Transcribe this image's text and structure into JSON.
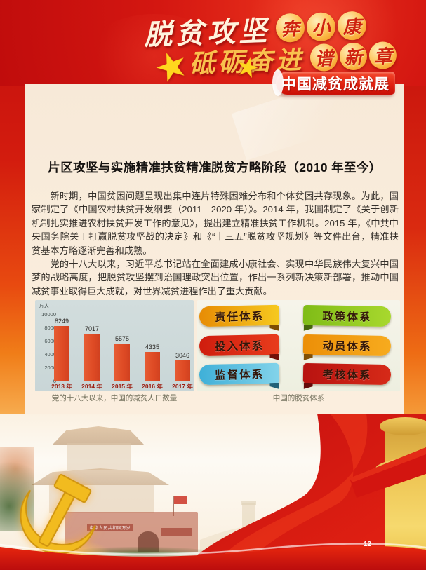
{
  "header": {
    "slogan_line1": "脱贫攻坚",
    "slogan_line1_medallions": [
      "奔",
      "小",
      "康"
    ],
    "slogan_line2": "砥砺奋进",
    "slogan_line2_medallions": [
      "谱",
      "新",
      "章"
    ],
    "banner_label": "中国减贫成就展"
  },
  "article": {
    "title": "片区攻坚与实施精准扶贫精准脱贫方略阶段（2010 年至今）",
    "paragraphs": [
      "新时期，中国贫困问题呈现出集中连片特殊困难分布和个体贫困共存现象。为此，国家制定了《中国农村扶贫开发纲要（2011—2020 年）》。2014 年，我国制定了《关于创新机制扎实推进农村扶贫开发工作的意见》，提出建立精准扶贫工作机制。2015 年，《中共中央国务院关于打赢脱贫攻坚战的决定》和《“十三五”脱贫攻坚规划》等文件出台，精准扶贫基本方略逐渐完善和成熟。",
      "党的十八大以来，习近平总书记站在全面建成小康社会、实现中华民族伟大复兴中国梦的战略高度，把脱贫攻坚摆到治国理政突出位置，作出一系列新决策新部署，推动中国减贫事业取得巨大成就，对世界减贫进程作出了重大贡献。"
    ]
  },
  "chart_data": {
    "type": "bar",
    "title": "党的十八大以来，中国的减贫人口数量",
    "unit_label": "万人",
    "categories": [
      "2013 年",
      "2014 年",
      "2015 年",
      "2016 年",
      "2017 年"
    ],
    "values": [
      8249,
      7017,
      5575,
      4335,
      3046
    ],
    "xlabel": "",
    "ylabel": "万人",
    "ylim": [
      0,
      10000
    ],
    "yticks": [
      0,
      2000,
      4000,
      6000,
      8000,
      10000
    ],
    "grid": false,
    "legend": "none",
    "bar_color": "#e0512b",
    "panel_background": "#ccd8d9"
  },
  "system_diagram": {
    "caption": "中国的脱贫体系",
    "items": [
      {
        "label": "责任体系",
        "color_start": "#e78c05",
        "color_end": "#f6c91f",
        "side": "left"
      },
      {
        "label": "政策体系",
        "color_start": "#7fbc17",
        "color_end": "#a8d82e",
        "side": "right"
      },
      {
        "label": "投入体系",
        "color_start": "#cf1d0e",
        "color_end": "#e83c1c",
        "side": "left"
      },
      {
        "label": "动员体系",
        "color_start": "#ec8f07",
        "color_end": "#f7ab1e",
        "side": "right"
      },
      {
        "label": "监督体系",
        "color_start": "#3fb0d8",
        "color_end": "#83d3ea",
        "side": "left"
      },
      {
        "label": "考核体系",
        "color_start": "#b81310",
        "color_end": "#d62a18",
        "side": "right"
      }
    ]
  },
  "captions": {
    "left": "党的十八大以来，中国的减贫人口数量",
    "right": "中国的脱贫体系"
  },
  "footer": {
    "wall_text": "中华人民共和国万岁",
    "page_number": "12"
  },
  "colors": {
    "header_red": "#cf1210",
    "banner_red": "#e42113",
    "panel_cream": "#f9ecdc",
    "accent_gold": "#ffd21e"
  }
}
